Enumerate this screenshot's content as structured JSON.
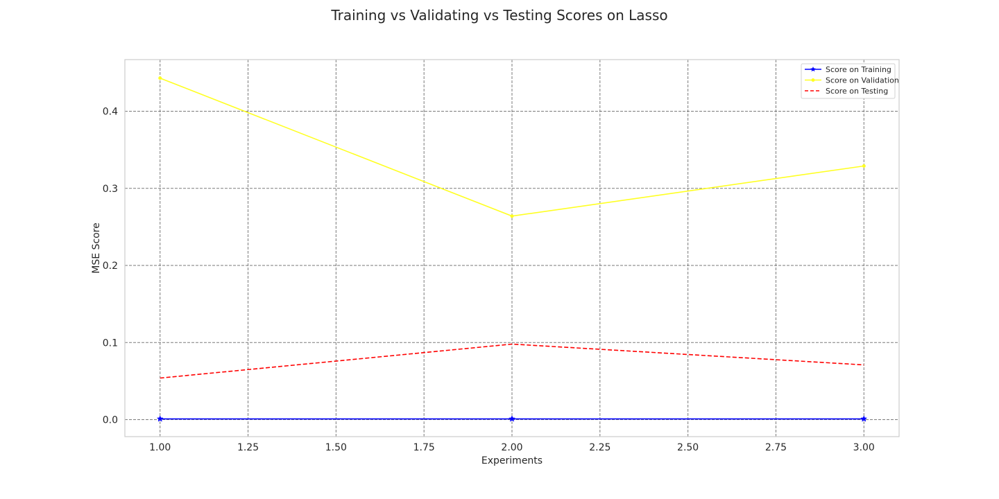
{
  "chart_data": {
    "type": "line",
    "title": "Training vs Validating vs Testing Scores on Lasso",
    "xlabel": "Experiments",
    "ylabel": "MSE Score",
    "x": [
      1.0,
      2.0,
      3.0
    ],
    "xlim": [
      0.9,
      3.1
    ],
    "ylim": [
      -0.022,
      0.467
    ],
    "xticks": [
      "1.00",
      "1.25",
      "1.50",
      "1.75",
      "2.00",
      "2.25",
      "2.50",
      "2.75",
      "3.00"
    ],
    "xtick_values": [
      1.0,
      1.25,
      1.5,
      1.75,
      2.0,
      2.25,
      2.5,
      2.75,
      3.0
    ],
    "yticks": [
      "0.0",
      "0.1",
      "0.2",
      "0.3",
      "0.4"
    ],
    "ytick_values": [
      0.0,
      0.1,
      0.2,
      0.3,
      0.4
    ],
    "grid": true,
    "legend_position": "top-right",
    "series": [
      {
        "name": "Score on Training",
        "values": [
          0.001,
          0.001,
          0.001
        ],
        "color": "#0000ff",
        "style": "solid",
        "marker": "star"
      },
      {
        "name": "Score on Validation",
        "values": [
          0.443,
          0.264,
          0.329
        ],
        "color": "#ffff22",
        "style": "solid",
        "marker": "dot"
      },
      {
        "name": "Score on Testing",
        "values": [
          0.054,
          0.098,
          0.071
        ],
        "color": "#ff0000",
        "style": "dashed",
        "marker": "none"
      }
    ]
  }
}
